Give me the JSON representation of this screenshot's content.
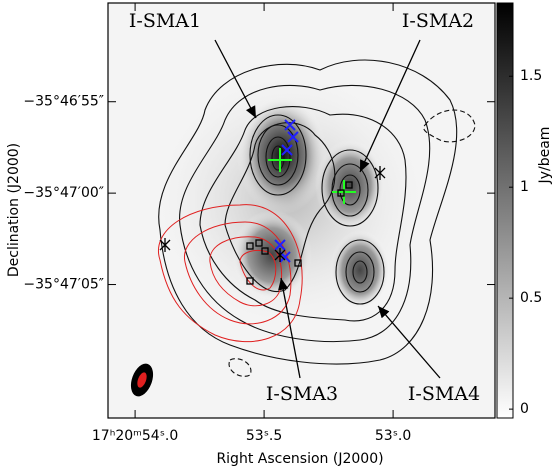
{
  "chart_data": {
    "type": "image",
    "xlabel": "Right Ascension (J2000)",
    "ylabel": "Declination (J2000)",
    "xlim": [
      54.105,
      52.605
    ],
    "xticks": [
      {
        "value": 54.0,
        "label": "17ʰ20ᵐ54ˢ.0"
      },
      {
        "value": 53.5,
        "label": "53ˢ.5"
      },
      {
        "value": 53.0,
        "label": "53ˢ.0"
      }
    ],
    "ylim": [
      72.3,
      49.6
    ],
    "yticks": [
      {
        "value": 55,
        "label": "−35°46′55″"
      },
      {
        "value": 60,
        "label": "−35°47′00″"
      },
      {
        "value": 65,
        "label": "−35°47′05″"
      }
    ],
    "colorbar": {
      "label": "Jy/beam",
      "clim": [
        -0.04,
        1.83
      ],
      "ticks": [
        0,
        0.5,
        1,
        1.5
      ]
    },
    "annotations": [
      "I-SMA1",
      "I-SMA2",
      "I-SMA3",
      "I-SMA4"
    ]
  }
}
